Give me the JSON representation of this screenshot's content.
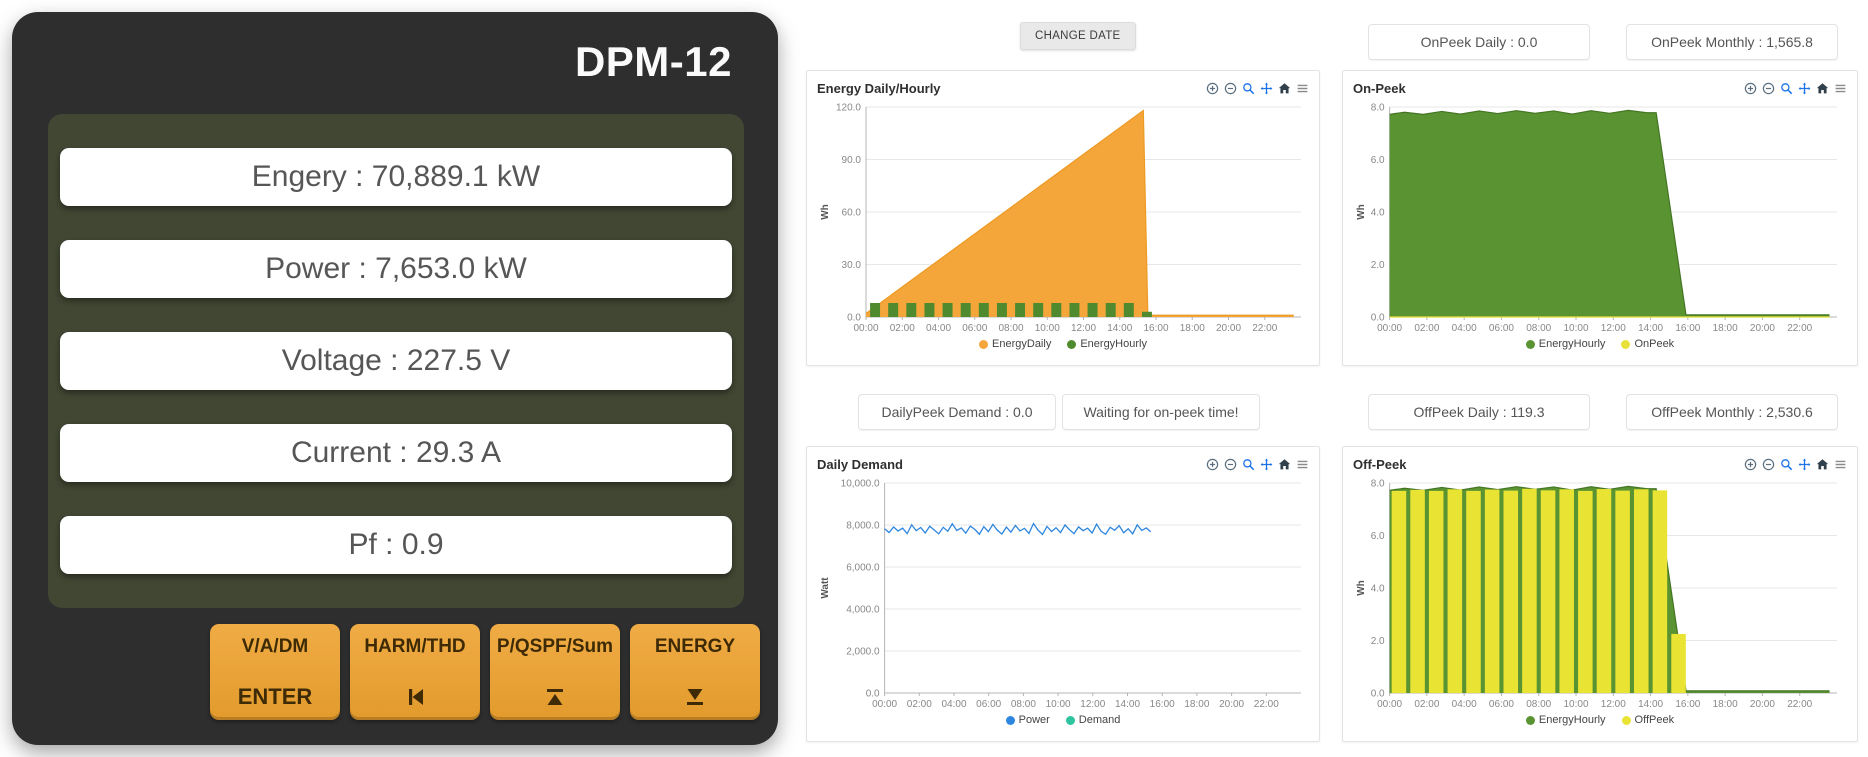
{
  "device": {
    "title": "DPM-12",
    "readouts": [
      "Engery : 70,889.1 kW",
      "Power : 7,653.0 kW",
      "Voltage : 227.5 V",
      "Current : 29.3 A",
      "Pf : 0.9"
    ],
    "buttons": [
      {
        "top": "V/A/DM",
        "bottom": "ENTER"
      },
      {
        "top": "HARM/THD",
        "icon": "skip-back-icon"
      },
      {
        "top": "P/QSPF/Sum",
        "icon": "up-bar-icon"
      },
      {
        "top": "ENERGY",
        "icon": "down-bar-icon"
      }
    ],
    "colors": {
      "body": "#2e2e2e",
      "screen": "#414733",
      "button": "#e8a23c"
    }
  },
  "dashboard": {
    "change_date_label": "CHANGE DATE",
    "badges": {
      "onpeek_daily": "OnPeek Daily : 0.0",
      "onpeek_monthly": "OnPeek Monthly : 1,565.8",
      "dailypeek_demand": "DailyPeek Demand : 0.0",
      "waiting": "Waiting for on-peek time!",
      "offpeek_daily": "OffPeek Daily : 119.3",
      "offpeek_monthly": "OffPeek Monthly : 2,530.6"
    },
    "toolbar_icons": [
      "zoom-in",
      "zoom-out",
      "magnifier",
      "pan",
      "home",
      "menu"
    ]
  },
  "chart_data": [
    {
      "type": "area",
      "title": "Energy Daily/Hourly",
      "ylabel": "Wh",
      "ymax": 120,
      "yticks": [
        0,
        30,
        60,
        90,
        120
      ],
      "ytick_labels": [
        "0.0",
        "30.0",
        "60.0",
        "90.0",
        "120.0"
      ],
      "xmax": 24,
      "xticks": [
        0,
        2,
        4,
        6,
        8,
        10,
        12,
        14,
        16,
        18,
        20,
        22
      ],
      "xtick_labels": [
        "00:00",
        "02:00",
        "04:00",
        "06:00",
        "08:00",
        "10:00",
        "12:00",
        "14:00",
        "16:00",
        "18:00",
        "20:00",
        "22:00"
      ],
      "grid": "horizontal",
      "legend_position": "bottom",
      "series": [
        {
          "name": "EnergyDaily",
          "type": "area",
          "color": "#f5a63b",
          "stroke": "#ec9a22",
          "points": [
            [
              0,
              2
            ],
            [
              15.3,
              118
            ],
            [
              15.55,
              1
            ],
            [
              23.6,
              1
            ]
          ]
        },
        {
          "name": "EnergyHourly",
          "type": "bar",
          "color": "#4f8b2e",
          "bar_width": 0.55,
          "values": [
            8,
            8,
            8,
            8,
            8,
            8,
            8,
            8,
            8,
            8,
            8,
            8,
            8,
            8,
            8,
            3,
            0,
            0,
            0,
            0,
            0,
            0,
            0,
            0
          ]
        }
      ],
      "legend": [
        {
          "label": "EnergyDaily",
          "color": "#f5a63b"
        },
        {
          "label": "EnergyHourly",
          "color": "#4f8b2e"
        }
      ]
    },
    {
      "type": "area",
      "title": "On-Peek",
      "ylabel": "Wh",
      "ymax": 8,
      "yticks": [
        0,
        2,
        4,
        6,
        8
      ],
      "ytick_labels": [
        "0.0",
        "2.0",
        "4.0",
        "6.0",
        "8.0"
      ],
      "xmax": 24,
      "xticks": [
        0,
        2,
        4,
        6,
        8,
        10,
        12,
        14,
        16,
        18,
        20,
        22
      ],
      "xtick_labels": [
        "00:00",
        "02:00",
        "04:00",
        "06:00",
        "08:00",
        "10:00",
        "12:00",
        "14:00",
        "16:00",
        "18:00",
        "20:00",
        "22:00"
      ],
      "grid": "horizontal",
      "legend_position": "bottom",
      "series": [
        {
          "name": "EnergyHourly",
          "type": "area",
          "color": "#5a9331",
          "stroke": "#447524",
          "points": [
            [
              0,
              7.72
            ],
            [
              0.8,
              7.8
            ],
            [
              1.8,
              7.72
            ],
            [
              2.8,
              7.83
            ],
            [
              3.8,
              7.73
            ],
            [
              4.8,
              7.85
            ],
            [
              5.8,
              7.75
            ],
            [
              6.8,
              7.86
            ],
            [
              7.8,
              7.76
            ],
            [
              8.8,
              7.85
            ],
            [
              9.8,
              7.73
            ],
            [
              10.8,
              7.86
            ],
            [
              11.8,
              7.76
            ],
            [
              12.8,
              7.87
            ],
            [
              13.8,
              7.78
            ],
            [
              14.3,
              7.78
            ],
            [
              15.9,
              0.08
            ],
            [
              23.6,
              0.08
            ]
          ]
        },
        {
          "name": "OnPeek",
          "type": "line",
          "color": "#e8e13c",
          "points": [
            [
              0,
              0
            ],
            [
              23.6,
              0
            ]
          ]
        }
      ],
      "legend": [
        {
          "label": "EnergyHourly",
          "color": "#5a9331"
        },
        {
          "label": "OnPeek",
          "color": "#e8e13c"
        }
      ]
    },
    {
      "type": "line",
      "title": "Daily Demand",
      "ylabel": "Watt",
      "ymax": 10000,
      "yticks": [
        0,
        2000,
        4000,
        6000,
        8000,
        10000
      ],
      "ytick_labels": [
        "0.0",
        "2,000.0",
        "4,000.0",
        "6,000.0",
        "8,000.0",
        "10,000.0"
      ],
      "xmax": 24,
      "xticks": [
        0,
        2,
        4,
        6,
        8,
        10,
        12,
        14,
        16,
        18,
        20,
        22
      ],
      "xtick_labels": [
        "00:00",
        "02:00",
        "04:00",
        "06:00",
        "08:00",
        "10:00",
        "12:00",
        "14:00",
        "16:00",
        "18:00",
        "20:00",
        "22:00"
      ],
      "grid": "horizontal",
      "legend_position": "bottom",
      "series": [
        {
          "name": "Power",
          "type": "line",
          "color": "#2e86de",
          "x_start": 0,
          "x_step": 0.26,
          "values": [
            7820,
            7640,
            7905,
            7710,
            7850,
            7590,
            8010,
            7730,
            7880,
            7620,
            7940,
            7760,
            7580,
            7890,
            7700,
            8060,
            7740,
            7860,
            7610,
            7950,
            7790,
            7560,
            7920,
            7680,
            8030,
            7750,
            7570,
            7900,
            7660,
            7980,
            7720,
            7840,
            7600,
            8070,
            7760,
            7550,
            7930,
            7690,
            7870,
            7640,
            8000,
            7770,
            7590,
            7910,
            7730,
            7850,
            7620,
            8040,
            7700,
            7560,
            7890,
            7750,
            7970,
            7630,
            7820,
            7580,
            8010,
            7740,
            7860,
            7680
          ]
        },
        {
          "name": "Demand",
          "type": "line",
          "color": "#2ec4a0",
          "x_start": 0,
          "x_step": 0.26,
          "values": []
        }
      ],
      "legend": [
        {
          "label": "Power",
          "color": "#2e86de"
        },
        {
          "label": "Demand",
          "color": "#2ec4a0"
        }
      ]
    },
    {
      "type": "area",
      "title": "Off-Peek",
      "ylabel": "Wh",
      "ymax": 8,
      "yticks": [
        0,
        2,
        4,
        6,
        8
      ],
      "ytick_labels": [
        "0.0",
        "2.0",
        "4.0",
        "6.0",
        "8.0"
      ],
      "xmax": 24,
      "xticks": [
        0,
        2,
        4,
        6,
        8,
        10,
        12,
        14,
        16,
        18,
        20,
        22
      ],
      "xtick_labels": [
        "00:00",
        "02:00",
        "04:00",
        "06:00",
        "08:00",
        "10:00",
        "12:00",
        "14:00",
        "16:00",
        "18:00",
        "20:00",
        "22:00"
      ],
      "grid": "horizontal",
      "legend_position": "bottom",
      "series": [
        {
          "name": "EnergyHourly",
          "type": "area",
          "color": "#5a9331",
          "stroke": "#447524",
          "points": [
            [
              0,
              7.72
            ],
            [
              0.8,
              7.8
            ],
            [
              1.8,
              7.72
            ],
            [
              2.8,
              7.83
            ],
            [
              3.8,
              7.73
            ],
            [
              4.8,
              7.85
            ],
            [
              5.8,
              7.75
            ],
            [
              6.8,
              7.86
            ],
            [
              7.8,
              7.76
            ],
            [
              8.8,
              7.85
            ],
            [
              9.8,
              7.73
            ],
            [
              10.8,
              7.86
            ],
            [
              11.8,
              7.76
            ],
            [
              12.8,
              7.87
            ],
            [
              13.8,
              7.78
            ],
            [
              14.3,
              7.78
            ],
            [
              15.9,
              0.08
            ],
            [
              23.6,
              0.08
            ]
          ]
        },
        {
          "name": "OffPeek",
          "type": "bar",
          "color": "#e9e334",
          "bar_width": 0.78,
          "values": [
            7.7,
            7.74,
            7.7,
            7.76,
            7.7,
            7.75,
            7.71,
            7.78,
            7.72,
            7.76,
            7.7,
            7.77,
            7.71,
            7.76,
            7.72,
            2.25,
            0,
            0,
            0,
            0,
            0,
            0,
            0,
            0
          ]
        }
      ],
      "legend": [
        {
          "label": "EnergyHourly",
          "color": "#5a9331"
        },
        {
          "label": "OffPeek",
          "color": "#e9e334"
        }
      ]
    }
  ]
}
